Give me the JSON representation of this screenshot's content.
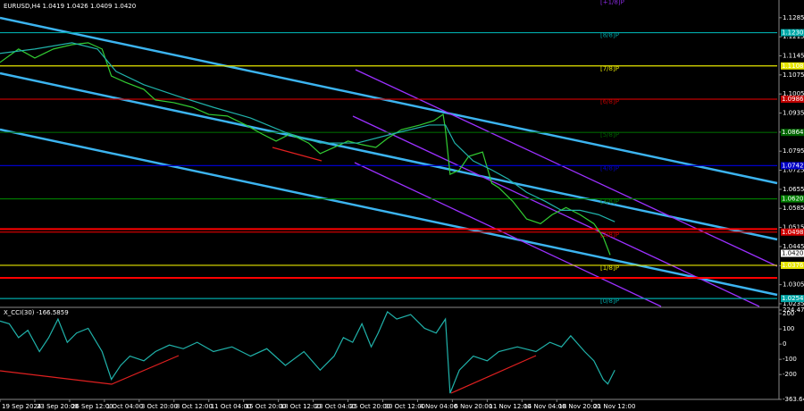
{
  "chart_data": [
    {
      "type": "line",
      "title": "EURUSD,H4  1.0419 1.0426 1.0409 1.0420",
      "xlim": [
        0,
        335
      ],
      "ylim": [
        1.0225,
        1.135
      ],
      "yticks": [
        1.1285,
        1.1215,
        1.1145,
        1.1075,
        1.1005,
        1.0935,
        1.0865,
        1.0795,
        1.0725,
        1.0655,
        1.0585,
        1.0515,
        1.0445,
        1.0375,
        1.0305,
        1.0235
      ],
      "series": [
        {
          "color": "#32cd32",
          "x": [
            0,
            8,
            15,
            23,
            31,
            38,
            44,
            48,
            54,
            62,
            67,
            75,
            83,
            90,
            98,
            106,
            113,
            119,
            125,
            133,
            138,
            144,
            150,
            156,
            162,
            167,
            173,
            181,
            187,
            191,
            192,
            194,
            198,
            202,
            208,
            212,
            215,
            221,
            227,
            233,
            238,
            244,
            250,
            256,
            260,
            263
          ],
          "values": [
            1.1121,
            1.117,
            1.1137,
            1.117,
            1.1186,
            1.1193,
            1.117,
            1.1071,
            1.1048,
            1.1022,
            1.0983,
            1.0973,
            1.0956,
            1.093,
            1.0924,
            1.0891,
            1.0858,
            1.0832,
            1.0858,
            1.0825,
            1.0786,
            1.0809,
            1.0832,
            1.0819,
            1.0809,
            1.0842,
            1.0874,
            1.0891,
            1.0907,
            1.093,
            1.0874,
            1.071,
            1.0726,
            1.0776,
            1.0792,
            1.0677,
            1.0661,
            1.0611,
            1.0546,
            1.0529,
            1.0562,
            1.0588,
            1.0562,
            1.0529,
            1.048,
            1.0414
          ]
        },
        {
          "color": "#20b2aa",
          "x": [
            0,
            15,
            31,
            42,
            50,
            62,
            77,
            92,
            108,
            123,
            138,
            154,
            169,
            185,
            192,
            196,
            204,
            212,
            219,
            227,
            235,
            242,
            250,
            258,
            265
          ],
          "values": [
            1.1154,
            1.117,
            1.1193,
            1.117,
            1.1088,
            1.1039,
            1.0996,
            1.0956,
            1.0917,
            1.0864,
            1.0825,
            1.0825,
            1.0858,
            1.0891,
            1.0891,
            1.0825,
            1.0759,
            1.0726,
            1.0693,
            1.0644,
            1.0611,
            1.0578,
            1.0578,
            1.0562,
            1.0536
          ]
        }
      ],
      "levels": [
        {
          "name": "[+1/8]P",
          "value": 1.1352,
          "color": "#8a2be2"
        },
        {
          "name": "[8/8]P",
          "value": 1.123,
          "value_label": "1.1230",
          "color": "#00a8a8"
        },
        {
          "name": "[7/8]P",
          "value": 1.1108,
          "value_label": "1.1108",
          "color": "#e6e600"
        },
        {
          "name": "[6/8]P",
          "value": 1.0986,
          "value_label": "1.0986",
          "color": "#c00000"
        },
        {
          "name": "[5/8]P",
          "value": 1.0864,
          "value_label": "1.0864",
          "color": "#006400"
        },
        {
          "name": "[4/8]P",
          "value": 1.0742,
          "value_label": "1.0742",
          "color": "#0000c8"
        },
        {
          "name": "[3/8]P",
          "value": 1.062,
          "value_label": "1.0620",
          "color": "#008000"
        },
        {
          "name": "[2/8]P",
          "value": 1.0498,
          "value_label": "1.0498",
          "color": "#d00000"
        },
        {
          "name": "[1/8]P",
          "value": 1.0376,
          "value_label": "1.0376",
          "color": "#e6e600"
        },
        {
          "name": "[0/8]P",
          "value": 1.0254,
          "value_label": "1.0254",
          "color": "#00a8a8"
        }
      ],
      "red_lines": [
        1.0509,
        1.033
      ],
      "last": {
        "value": 1.042,
        "label": "1.0420"
      }
    },
    {
      "type": "line",
      "title": "X_CCI(30) -166.5859",
      "xlim": [
        0,
        335
      ],
      "ylim": [
        -363.6414,
        224.4725
      ],
      "yticks": [
        224.4725,
        200,
        100,
        0,
        -100,
        -200,
        -363.6414
      ],
      "xticks": [
        {
          "value": 0,
          "label": "19 Sep 2024"
        },
        {
          "value": 15,
          "label": "23 Sep 20:00"
        },
        {
          "value": 30,
          "label": "26 Sep 12:00"
        },
        {
          "value": 45,
          "label": "1 Oct 04:00"
        },
        {
          "value": 60,
          "label": "3 Oct 20:00"
        },
        {
          "value": 75,
          "label": "8 Oct 12:00"
        },
        {
          "value": 90,
          "label": "11 Oct 04:00"
        },
        {
          "value": 105,
          "label": "15 Oct 20:00"
        },
        {
          "value": 120,
          "label": "18 Oct 12:00"
        },
        {
          "value": 135,
          "label": "23 Oct 04:00"
        },
        {
          "value": 150,
          "label": "25 Oct 20:00"
        },
        {
          "value": 165,
          "label": "30 Oct 12:00"
        },
        {
          "value": 180,
          "label": "4 Nov 04:00"
        },
        {
          "value": 195,
          "label": "6 Nov 20:00"
        },
        {
          "value": 210,
          "label": "11 Nov 12:00"
        },
        {
          "value": 225,
          "label": "14 Nov 04:00"
        },
        {
          "value": 240,
          "label": "18 Nov 20:00"
        },
        {
          "value": 255,
          "label": "21 Nov 12:00"
        }
      ],
      "series": [
        {
          "color": "#20b2aa",
          "x": [
            0,
            4,
            8,
            12,
            17,
            21,
            25,
            29,
            33,
            38,
            44,
            48,
            52,
            56,
            62,
            67,
            73,
            79,
            85,
            92,
            100,
            108,
            115,
            123,
            131,
            138,
            144,
            148,
            152,
            156,
            160,
            163,
            167,
            171,
            177,
            183,
            188,
            192,
            194,
            198,
            204,
            210,
            215,
            223,
            231,
            237,
            242,
            246,
            252,
            256,
            260,
            262,
            265
          ],
          "values": [
            152,
            134,
            43,
            91,
            -49,
            43,
            165,
            12,
            73,
            104,
            -49,
            -232,
            -140,
            -79,
            -110,
            -49,
            -6,
            -30,
            12,
            -49,
            -18,
            -79,
            -30,
            -140,
            -49,
            -171,
            -79,
            43,
            12,
            134,
            -18,
            73,
            213,
            165,
            195,
            104,
            73,
            165,
            -323,
            -171,
            -79,
            -110,
            -49,
            -18,
            -49,
            12,
            -18,
            55,
            -49,
            -110,
            -232,
            -262,
            -171
          ]
        }
      ]
    }
  ]
}
